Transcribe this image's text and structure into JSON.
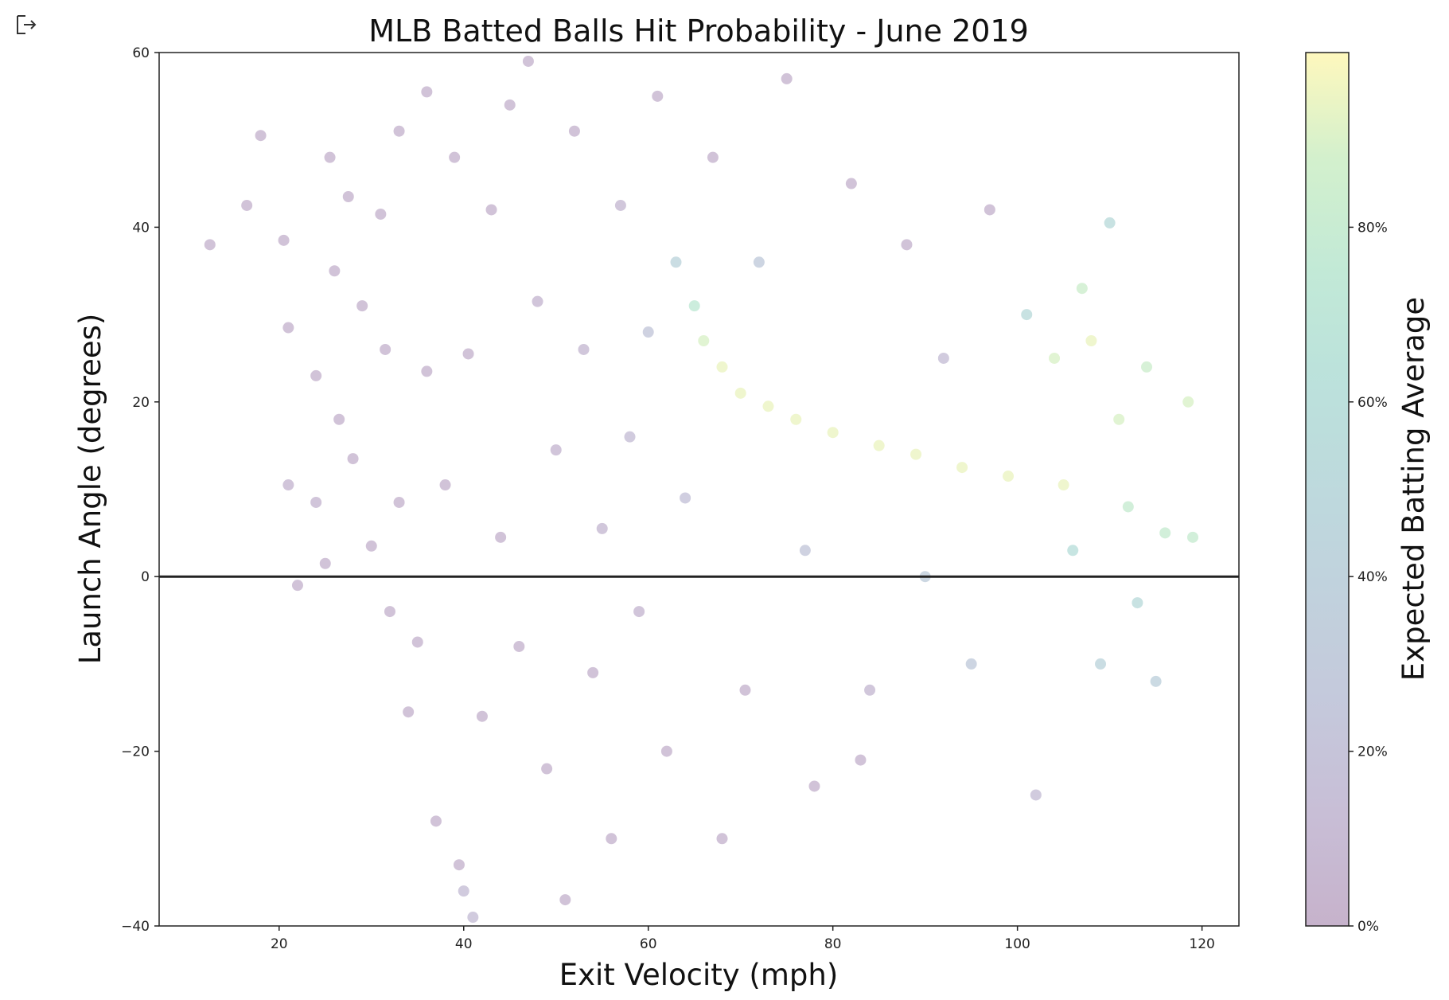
{
  "cell": {
    "output_icon": "output-arrow-icon"
  },
  "chart_data": {
    "type": "scatter",
    "title": "MLB Batted Balls Hit Probability - June 2019",
    "xlabel": "Exit Velocity (mph)",
    "ylabel": "Launch Angle (degrees)",
    "xlim": [
      7,
      124
    ],
    "ylim": [
      -40,
      60
    ],
    "xticks": [
      "20",
      "40",
      "60",
      "80",
      "100",
      "120"
    ],
    "yticks": [
      "60",
      "40",
      "20",
      "0",
      "−20",
      "−40"
    ],
    "xtick_values": [
      20,
      40,
      60,
      80,
      100,
      120
    ],
    "ytick_values": [
      60,
      40,
      20,
      0,
      -20,
      -40
    ],
    "reference_line": {
      "y": 0,
      "color": "#222222"
    },
    "colormap": "viridis",
    "marker_alpha": 0.25,
    "colorbar": {
      "label": "Expected Batting Average",
      "ticks": [
        "0%",
        "20%",
        "40%",
        "60%",
        "80%"
      ],
      "tick_values": [
        0,
        0.2,
        0.4,
        0.6,
        0.8
      ],
      "range": [
        0,
        1
      ]
    },
    "colors": {
      "low": "#440154",
      "mid": "#21918c",
      "high": "#fde725"
    },
    "series": [
      {
        "values": [
          {
            "x": 12.5,
            "y": 38,
            "c": 0.05
          },
          {
            "x": 16.5,
            "y": 42.5,
            "c": 0.05
          },
          {
            "x": 18,
            "y": 50.5,
            "c": 0.05
          },
          {
            "x": 20.5,
            "y": 38.5,
            "c": 0.05
          },
          {
            "x": 21,
            "y": 28.5,
            "c": 0.05
          },
          {
            "x": 21,
            "y": 10.5,
            "c": 0.08
          },
          {
            "x": 22,
            "y": -1,
            "c": 0.05
          },
          {
            "x": 24,
            "y": 23,
            "c": 0.05
          },
          {
            "x": 24,
            "y": 8.5,
            "c": 0.08
          },
          {
            "x": 25,
            "y": 1.5,
            "c": 0.05
          },
          {
            "x": 25.5,
            "y": 48,
            "c": 0.05
          },
          {
            "x": 26,
            "y": 35,
            "c": 0.05
          },
          {
            "x": 26.5,
            "y": 18,
            "c": 0.05
          },
          {
            "x": 27.5,
            "y": 43.5,
            "c": 0.05
          },
          {
            "x": 28,
            "y": 13.5,
            "c": 0.05
          },
          {
            "x": 29,
            "y": 31,
            "c": 0.05
          },
          {
            "x": 30,
            "y": 3.5,
            "c": 0.05
          },
          {
            "x": 31,
            "y": 41.5,
            "c": 0.05
          },
          {
            "x": 31.5,
            "y": 26,
            "c": 0.05
          },
          {
            "x": 32,
            "y": -4,
            "c": 0.05
          },
          {
            "x": 33,
            "y": 51,
            "c": 0.05
          },
          {
            "x": 33,
            "y": 8.5,
            "c": 0.05
          },
          {
            "x": 34,
            "y": -15.5,
            "c": 0.05
          },
          {
            "x": 35,
            "y": -7.5,
            "c": 0.05
          },
          {
            "x": 36,
            "y": 55.5,
            "c": 0.05
          },
          {
            "x": 36,
            "y": 23.5,
            "c": 0.05
          },
          {
            "x": 37,
            "y": -28,
            "c": 0.05
          },
          {
            "x": 38,
            "y": 10.5,
            "c": 0.05
          },
          {
            "x": 39,
            "y": 48,
            "c": 0.05
          },
          {
            "x": 39.5,
            "y": -33,
            "c": 0.05
          },
          {
            "x": 40,
            "y": -36,
            "c": 0.15
          },
          {
            "x": 40.5,
            "y": 25.5,
            "c": 0.05
          },
          {
            "x": 41,
            "y": -39,
            "c": 0.15
          },
          {
            "x": 42,
            "y": -16,
            "c": 0.05
          },
          {
            "x": 43,
            "y": 42,
            "c": 0.05
          },
          {
            "x": 44,
            "y": 4.5,
            "c": 0.05
          },
          {
            "x": 45,
            "y": 54,
            "c": 0.05
          },
          {
            "x": 46,
            "y": -8,
            "c": 0.05
          },
          {
            "x": 47,
            "y": 59,
            "c": 0.05
          },
          {
            "x": 48,
            "y": 31.5,
            "c": 0.08
          },
          {
            "x": 49,
            "y": -22,
            "c": 0.05
          },
          {
            "x": 50,
            "y": 14.5,
            "c": 0.08
          },
          {
            "x": 51,
            "y": -37,
            "c": 0.05
          },
          {
            "x": 52,
            "y": 51,
            "c": 0.05
          },
          {
            "x": 53,
            "y": 26,
            "c": 0.1
          },
          {
            "x": 54,
            "y": -11,
            "c": 0.05
          },
          {
            "x": 55,
            "y": 5.5,
            "c": 0.1
          },
          {
            "x": 56,
            "y": -30,
            "c": 0.05
          },
          {
            "x": 57,
            "y": 42.5,
            "c": 0.1
          },
          {
            "x": 58,
            "y": 16,
            "c": 0.15
          },
          {
            "x": 59,
            "y": -4,
            "c": 0.08
          },
          {
            "x": 60,
            "y": 28,
            "c": 0.25
          },
          {
            "x": 61,
            "y": 55,
            "c": 0.05
          },
          {
            "x": 62,
            "y": -20,
            "c": 0.05
          },
          {
            "x": 63,
            "y": 36,
            "c": 0.45
          },
          {
            "x": 64,
            "y": 9,
            "c": 0.2
          },
          {
            "x": 65,
            "y": 31,
            "c": 0.75
          },
          {
            "x": 66,
            "y": 27,
            "c": 0.9
          },
          {
            "x": 67,
            "y": 48,
            "c": 0.05
          },
          {
            "x": 68,
            "y": 24,
            "c": 0.95
          },
          {
            "x": 68,
            "y": -30,
            "c": 0.05
          },
          {
            "x": 70,
            "y": 21,
            "c": 0.95
          },
          {
            "x": 70.5,
            "y": -13,
            "c": 0.05
          },
          {
            "x": 72,
            "y": 36,
            "c": 0.3
          },
          {
            "x": 73,
            "y": 19.5,
            "c": 0.95
          },
          {
            "x": 75,
            "y": 57,
            "c": 0.05
          },
          {
            "x": 76,
            "y": 18,
            "c": 0.95
          },
          {
            "x": 77,
            "y": 3,
            "c": 0.25
          },
          {
            "x": 78,
            "y": -24,
            "c": 0.05
          },
          {
            "x": 80,
            "y": 16.5,
            "c": 0.95
          },
          {
            "x": 82,
            "y": 45,
            "c": 0.05
          },
          {
            "x": 83,
            "y": -21,
            "c": 0.05
          },
          {
            "x": 84,
            "y": -13,
            "c": 0.1
          },
          {
            "x": 85,
            "y": 15,
            "c": 0.95
          },
          {
            "x": 88,
            "y": 38,
            "c": 0.05
          },
          {
            "x": 89,
            "y": 14,
            "c": 0.95
          },
          {
            "x": 90,
            "y": 0,
            "c": 0.35
          },
          {
            "x": 92,
            "y": 25,
            "c": 0.15
          },
          {
            "x": 94,
            "y": 12.5,
            "c": 0.95
          },
          {
            "x": 95,
            "y": -10,
            "c": 0.3
          },
          {
            "x": 97,
            "y": 42,
            "c": 0.05
          },
          {
            "x": 99,
            "y": 11.5,
            "c": 0.95
          },
          {
            "x": 101,
            "y": 30,
            "c": 0.55
          },
          {
            "x": 102,
            "y": -25,
            "c": 0.15
          },
          {
            "x": 104,
            "y": 25,
            "c": 0.9
          },
          {
            "x": 105,
            "y": 10.5,
            "c": 0.95
          },
          {
            "x": 106,
            "y": 3,
            "c": 0.6
          },
          {
            "x": 107,
            "y": 33,
            "c": 0.85
          },
          {
            "x": 108,
            "y": 27,
            "c": 0.95
          },
          {
            "x": 109,
            "y": -10,
            "c": 0.45
          },
          {
            "x": 110,
            "y": 40.5,
            "c": 0.55
          },
          {
            "x": 111,
            "y": 18,
            "c": 0.9
          },
          {
            "x": 112,
            "y": 8,
            "c": 0.8
          },
          {
            "x": 113,
            "y": -3,
            "c": 0.55
          },
          {
            "x": 114,
            "y": 24,
            "c": 0.85
          },
          {
            "x": 115,
            "y": -12,
            "c": 0.4
          },
          {
            "x": 116,
            "y": 5,
            "c": 0.8
          },
          {
            "x": 118.5,
            "y": 20,
            "c": 0.9
          },
          {
            "x": 119,
            "y": 4.5,
            "c": 0.8
          }
        ]
      }
    ]
  }
}
